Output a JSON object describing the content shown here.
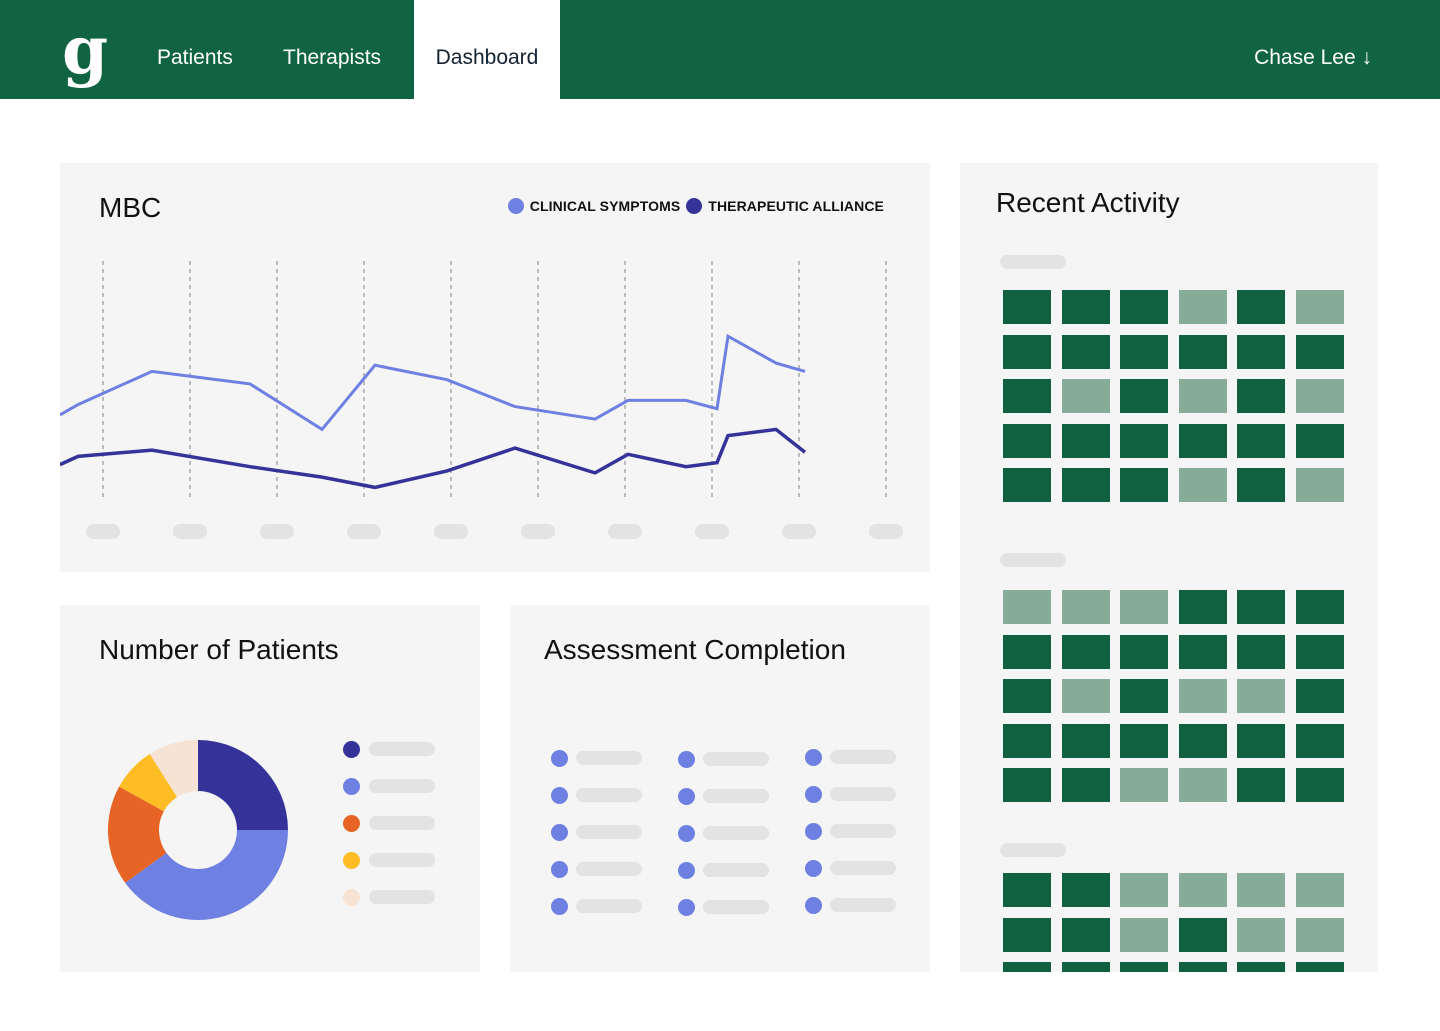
{
  "nav": {
    "logo": "g",
    "items": [
      {
        "label": "Patients"
      },
      {
        "label": "Therapists"
      },
      {
        "label": "Dashboard"
      }
    ],
    "user": "Chase Lee ↓"
  },
  "colors": {
    "brand": "#106442",
    "clinical": "#6e80e2",
    "alliance": "#353399",
    "orange": "#e56426",
    "yellow": "#febd24",
    "cream": "#f6e3d3",
    "cell_dark": "#0f6140",
    "cell_light": "#86ac98"
  },
  "mbc": {
    "title": "MBC",
    "legend": [
      {
        "label": "CLINICAL SYMPTOMS",
        "color": "#6e80e2"
      },
      {
        "label": "THERAPEUTIC ALLIANCE",
        "color": "#353399"
      }
    ]
  },
  "chart_data": {
    "type": "line",
    "title": "MBC",
    "series": [
      {
        "name": "CLINICAL SYMPTOMS",
        "values": [
          57,
          62,
          78,
          72,
          50,
          81,
          74,
          61,
          55,
          64,
          64,
          60,
          95,
          82,
          78
        ]
      },
      {
        "name": "THERAPEUTIC ALLIANCE",
        "values": [
          33,
          37,
          40,
          32,
          27,
          22,
          30,
          41,
          29,
          38,
          32,
          34,
          47,
          50,
          39
        ]
      }
    ],
    "x": [
      0,
      18,
      92,
      190,
      262,
      315,
      387,
      455,
      535,
      568,
      626,
      657,
      668,
      716,
      745
    ],
    "xlim": [
      0,
      870
    ],
    "ylim": [
      0,
      140
    ],
    "x_tick_count": 10,
    "grid": "vertical dashed"
  },
  "patients": {
    "title": "Number of Patients",
    "donut": [
      {
        "value": 25,
        "color": "#353399"
      },
      {
        "value": 40,
        "color": "#6e80e2"
      },
      {
        "value": 18,
        "color": "#e56426"
      },
      {
        "value": 8,
        "color": "#febd24"
      },
      {
        "value": 9,
        "color": "#f6e3d3"
      }
    ]
  },
  "assessment": {
    "title": "Assessment Completion"
  },
  "activity": {
    "title": "Recent Activity",
    "grids": [
      [
        [
          1,
          1,
          1,
          0,
          1,
          0
        ],
        [
          1,
          1,
          1,
          1,
          1,
          1
        ],
        [
          1,
          0,
          1,
          0,
          1,
          0
        ],
        [
          1,
          1,
          1,
          1,
          1,
          1
        ],
        [
          1,
          1,
          1,
          0,
          1,
          0
        ]
      ],
      [
        [
          0,
          0,
          0,
          1,
          1,
          1
        ],
        [
          1,
          1,
          1,
          1,
          1,
          1
        ],
        [
          1,
          0,
          1,
          0,
          0,
          1
        ],
        [
          1,
          1,
          1,
          1,
          1,
          1
        ],
        [
          1,
          1,
          0,
          0,
          1,
          1
        ]
      ],
      [
        [
          1,
          1,
          0,
          0,
          0,
          0
        ],
        [
          1,
          1,
          0,
          1,
          0,
          0
        ],
        [
          1,
          1,
          1,
          1,
          1,
          1
        ]
      ]
    ]
  }
}
